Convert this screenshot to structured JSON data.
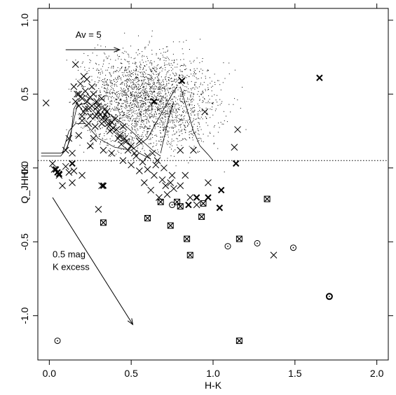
{
  "chart_data": {
    "type": "scatter",
    "title": "",
    "xlabel": "H-K",
    "ylabel": "Q_JHHK",
    "xlim": [
      -0.07,
      2.07
    ],
    "ylim": [
      -1.3,
      1.08
    ],
    "xticks": [
      0.0,
      0.5,
      1.0,
      1.5,
      2.0
    ],
    "xtick_labels": [
      "0.0",
      "0.5",
      "1.0",
      "1.5",
      "2.0"
    ],
    "yticks": [
      -1.0,
      -0.5,
      0.0,
      0.5,
      1.0
    ],
    "ytick_labels": [
      "-1.0",
      "-0.5",
      "0.0",
      "0.5",
      "1.0"
    ],
    "grid": false,
    "reference_line": {
      "y": 0.05,
      "style": "dotted"
    },
    "annotations": [
      {
        "text": "Av = 5",
        "arrow_from": [
          0.1,
          0.8
        ],
        "arrow_to": [
          0.43,
          0.8
        ]
      },
      {
        "text": "0.5 mag",
        "text2": "K excess",
        "arrow_from": [
          0.02,
          -0.2
        ],
        "arrow_to": [
          0.51,
          -1.06
        ]
      }
    ],
    "series": [
      {
        "marker": "dot",
        "cloud": {
          "n": 2600,
          "x_center": 0.6,
          "x_spread": 0.2,
          "y_center": 0.46,
          "y_spread": 0.16
        }
      },
      {
        "marker": "x-large",
        "points": [
          [
            -0.02,
            0.44
          ],
          [
            0.16,
            0.7
          ],
          [
            0.17,
            0.5
          ],
          [
            0.19,
            0.57
          ],
          [
            0.21,
            0.62
          ],
          [
            0.22,
            0.52
          ],
          [
            0.23,
            0.45
          ],
          [
            0.24,
            0.4
          ],
          [
            0.26,
            0.55
          ],
          [
            0.28,
            0.35
          ],
          [
            0.3,
            0.42
          ],
          [
            0.32,
            0.3
          ],
          [
            0.35,
            0.38
          ],
          [
            0.37,
            0.25
          ],
          [
            0.4,
            0.33
          ],
          [
            0.42,
            0.2
          ],
          [
            0.45,
            0.28
          ],
          [
            0.5,
            0.15
          ],
          [
            0.55,
            0.18
          ],
          [
            0.6,
            0.08
          ],
          [
            0.63,
            0.1
          ],
          [
            0.66,
            0.05
          ],
          [
            0.7,
            0.0
          ],
          [
            0.75,
            -0.05
          ],
          [
            0.8,
            -0.12
          ],
          [
            0.86,
            -0.2
          ],
          [
            0.9,
            -0.25
          ],
          [
            0.95,
            0.38
          ],
          [
            1.13,
            0.14
          ],
          [
            1.15,
            0.26
          ],
          [
            0.1,
            0.12
          ],
          [
            0.12,
            0.2
          ],
          [
            0.14,
            0.1
          ],
          [
            0.18,
            0.22
          ],
          [
            0.2,
            0.32
          ],
          [
            0.25,
            0.15
          ],
          [
            0.27,
            0.2
          ],
          [
            0.33,
            0.12
          ],
          [
            0.38,
            0.1
          ],
          [
            0.45,
            0.05
          ],
          [
            0.5,
            0.02
          ],
          [
            0.55,
            -0.02
          ],
          [
            0.58,
            -0.1
          ],
          [
            0.62,
            -0.15
          ],
          [
            0.67,
            -0.2
          ],
          [
            0.72,
            -0.18
          ],
          [
            0.02,
            0.03
          ],
          [
            0.03,
            -0.01
          ],
          [
            0.06,
            -0.05
          ],
          [
            0.08,
            -0.12
          ],
          [
            0.12,
            -0.03
          ],
          [
            0.14,
            -0.1
          ],
          [
            0.2,
            -0.05
          ],
          [
            0.3,
            -0.28
          ],
          [
            0.32,
            -0.12
          ],
          [
            1.37,
            -0.59
          ],
          [
            0.25,
            0.35
          ],
          [
            0.29,
            0.45
          ],
          [
            0.34,
            0.4
          ],
          [
            0.36,
            0.3
          ],
          [
            0.39,
            0.27
          ],
          [
            0.43,
            0.22
          ],
          [
            0.47,
            0.18
          ],
          [
            0.22,
            0.4
          ],
          [
            0.24,
            0.3
          ],
          [
            0.28,
            0.28
          ],
          [
            0.31,
            0.36
          ],
          [
            0.18,
            0.42
          ],
          [
            0.2,
            0.47
          ],
          [
            0.15,
            0.55
          ],
          [
            0.23,
            0.6
          ],
          [
            0.27,
            0.5
          ],
          [
            0.32,
            0.47
          ],
          [
            0.35,
            0.33
          ],
          [
            0.52,
            0.1
          ],
          [
            0.57,
            0.04
          ],
          [
            0.64,
            -0.05
          ],
          [
            0.69,
            -0.08
          ],
          [
            0.74,
            -0.1
          ],
          [
            0.83,
            -0.05
          ],
          [
            0.97,
            -0.1
          ],
          [
            0.8,
            0.12
          ],
          [
            0.88,
            0.12
          ],
          [
            0.2,
            0.35
          ],
          [
            0.26,
            0.42
          ],
          [
            0.3,
            0.38
          ],
          [
            0.33,
            0.34
          ],
          [
            0.38,
            0.31
          ],
          [
            0.41,
            0.26
          ],
          [
            0.44,
            0.16
          ],
          [
            0.48,
            0.12
          ],
          [
            0.53,
            0.08
          ],
          [
            0.16,
            0.45
          ],
          [
            0.18,
            0.5
          ],
          [
            0.21,
            0.38
          ],
          [
            0.25,
            0.48
          ],
          [
            0.29,
            0.41
          ],
          [
            0.34,
            0.36
          ],
          [
            0.37,
            0.29
          ],
          [
            0.46,
            0.2
          ],
          [
            0.6,
            -0.01
          ],
          [
            0.65,
            0.02
          ],
          [
            0.71,
            -0.12
          ],
          [
            0.76,
            -0.14
          ],
          [
            0.1,
            0.01
          ],
          [
            0.15,
            -0.02
          ]
        ]
      },
      {
        "marker": "x-bold",
        "points": [
          [
            0.04,
            -0.01
          ],
          [
            0.05,
            -0.03
          ],
          [
            0.06,
            -0.04
          ],
          [
            0.14,
            0.03
          ],
          [
            0.33,
            -0.12
          ],
          [
            0.81,
            0.59
          ],
          [
            0.64,
            0.45
          ],
          [
            0.85,
            -0.25
          ],
          [
            0.9,
            -0.2
          ],
          [
            0.97,
            -0.2
          ],
          [
            1.04,
            -0.27
          ],
          [
            1.05,
            -0.15
          ],
          [
            1.14,
            0.03
          ],
          [
            1.65,
            0.61
          ]
        ]
      },
      {
        "marker": "boxed-x",
        "points": [
          [
            0.33,
            -0.37
          ],
          [
            0.6,
            -0.34
          ],
          [
            0.68,
            -0.23
          ],
          [
            0.74,
            -0.39
          ],
          [
            0.78,
            -0.23
          ],
          [
            0.8,
            -0.26
          ],
          [
            0.84,
            -0.48
          ],
          [
            0.86,
            -0.59
          ],
          [
            0.93,
            -0.33
          ],
          [
            0.94,
            -0.24
          ],
          [
            1.16,
            -0.48
          ],
          [
            1.16,
            -1.17
          ],
          [
            1.33,
            -0.21
          ]
        ]
      },
      {
        "marker": "circle",
        "points": [
          [
            0.05,
            -1.17
          ],
          [
            0.75,
            -0.25
          ],
          [
            1.09,
            -0.53
          ],
          [
            1.27,
            -0.51
          ],
          [
            1.49,
            -0.54
          ],
          [
            1.71,
            -0.87
          ]
        ]
      },
      {
        "marker": "circle-bold",
        "points": [
          [
            1.71,
            -0.87
          ]
        ]
      }
    ],
    "curves": [
      [
        [
          -0.05,
          0.1
        ],
        [
          0.07,
          0.1
        ],
        [
          0.1,
          0.12
        ],
        [
          0.13,
          0.2
        ],
        [
          0.15,
          0.4
        ],
        [
          0.2,
          0.5
        ],
        [
          0.28,
          0.45
        ],
        [
          0.35,
          0.38
        ],
        [
          0.45,
          0.3
        ],
        [
          0.55,
          0.2
        ],
        [
          0.63,
          0.12
        ],
        [
          0.68,
          0.08
        ]
      ],
      [
        [
          -0.05,
          0.08
        ],
        [
          0.07,
          0.08
        ],
        [
          0.11,
          0.14
        ],
        [
          0.14,
          0.28
        ],
        [
          0.17,
          0.42
        ],
        [
          0.22,
          0.44
        ],
        [
          0.3,
          0.35
        ],
        [
          0.38,
          0.26
        ],
        [
          0.46,
          0.18
        ],
        [
          0.55,
          0.1
        ],
        [
          0.62,
          0.06
        ]
      ],
      [
        [
          0.08,
          0.1
        ],
        [
          0.12,
          0.25
        ],
        [
          0.16,
          0.3
        ],
        [
          0.22,
          0.3
        ],
        [
          0.3,
          0.2
        ],
        [
          0.4,
          0.14
        ],
        [
          0.5,
          0.12
        ],
        [
          0.6,
          0.2
        ],
        [
          0.65,
          0.3
        ],
        [
          0.7,
          0.4
        ],
        [
          0.75,
          0.5
        ],
        [
          0.78,
          0.55
        ]
      ],
      [
        [
          0.8,
          0.55
        ],
        [
          0.84,
          0.4
        ],
        [
          0.88,
          0.25
        ],
        [
          0.92,
          0.15
        ],
        [
          0.97,
          0.09
        ],
        [
          1.0,
          0.05
        ]
      ],
      [
        [
          0.68,
          0.1
        ],
        [
          0.7,
          0.2
        ],
        [
          0.72,
          0.3
        ],
        [
          0.74,
          0.38
        ],
        [
          0.76,
          0.45
        ]
      ]
    ]
  }
}
